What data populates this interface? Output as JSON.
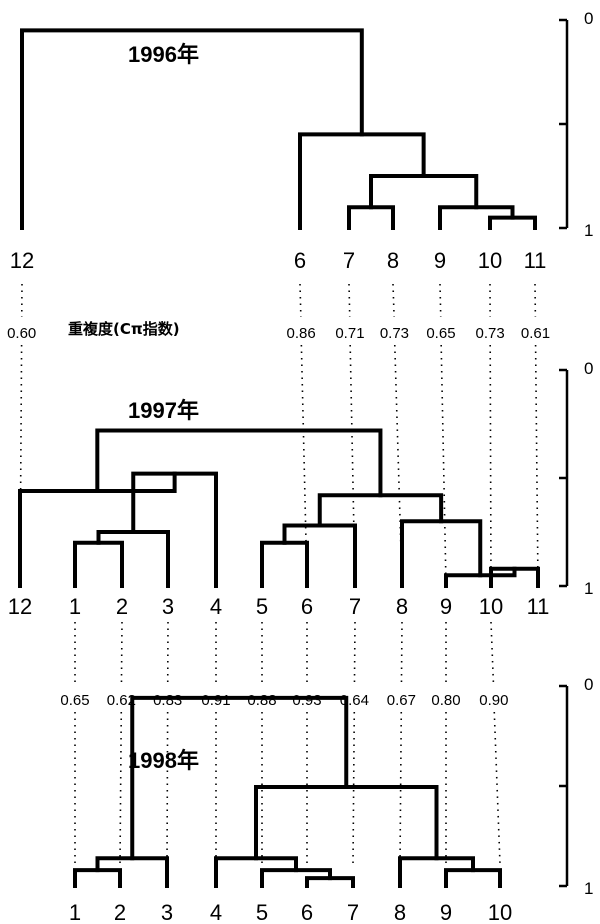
{
  "caption": "重複度(Cπ指数)",
  "panels": [
    {
      "title": "1996年",
      "scale_top": "0",
      "scale_bottom": "1",
      "leaves": [
        "12",
        "6",
        "7",
        "8",
        "9",
        "10",
        "11"
      ],
      "merges": [
        {
          "a": "10",
          "b": "11",
          "h": 0.95
        },
        {
          "a": "9",
          "b": "10|11",
          "h": 0.9
        },
        {
          "a": "7",
          "b": "8",
          "h": 0.9
        },
        {
          "a": "7|8",
          "b": "9|10|11",
          "h": 0.75
        },
        {
          "a": "6",
          "b": "7|8|9|10|11",
          "h": 0.55
        },
        {
          "a": "12",
          "b": "6|7|8|9|10|11",
          "h": 0.05
        }
      ]
    },
    {
      "title": "1997年",
      "scale_top": "0",
      "scale_bottom": "1",
      "leaves": [
        "12",
        "1",
        "2",
        "3",
        "4",
        "5",
        "6",
        "7",
        "8",
        "9",
        "10",
        "11"
      ],
      "merges": [
        {
          "a": "10",
          "b": "11",
          "h": 0.92
        },
        {
          "a": "9",
          "b": "10|11",
          "h": 0.95
        },
        {
          "a": "8",
          "b": "9|10|11",
          "h": 0.7
        },
        {
          "a": "5",
          "b": "6",
          "h": 0.8
        },
        {
          "a": "5|6",
          "b": "7",
          "h": 0.72
        },
        {
          "a": "5|6|7",
          "b": "8|9|10|11",
          "h": 0.58
        },
        {
          "a": "1",
          "b": "2",
          "h": 0.8
        },
        {
          "a": "1|2",
          "b": "3",
          "h": 0.75
        },
        {
          "a": "1|2|3",
          "b": "4",
          "h": 0.48
        },
        {
          "a": "12",
          "b": "1|2|3|4",
          "h": 0.56
        },
        {
          "a": "12|1|2|3|4",
          "b": "5|6|7|8|9|10|11",
          "h": 0.28
        }
      ]
    },
    {
      "title": "1998年",
      "scale_top": "0",
      "scale_bottom": "1",
      "leaves": [
        "1",
        "2",
        "3",
        "4",
        "5",
        "6",
        "7",
        "8",
        "9",
        "10"
      ],
      "merges": [
        {
          "a": "1",
          "b": "2",
          "h": 0.92
        },
        {
          "a": "1|2",
          "b": "3",
          "h": 0.86
        },
        {
          "a": "6",
          "b": "7",
          "h": 0.96
        },
        {
          "a": "5",
          "b": "6|7",
          "h": 0.92
        },
        {
          "a": "4",
          "b": "5|6|7",
          "h": 0.86
        },
        {
          "a": "9",
          "b": "10",
          "h": 0.92
        },
        {
          "a": "8",
          "b": "9|10",
          "h": 0.86
        },
        {
          "a": "4|5|6|7",
          "b": "8|9|10",
          "h": 0.5
        },
        {
          "a": "1|2|3",
          "b": "4|5|6|7|8|9|10",
          "h": 0.05
        }
      ]
    }
  ],
  "comparisons": [
    {
      "pairs": [
        {
          "label": "12",
          "value": "0.60"
        },
        {
          "label": "6",
          "value": "0.86"
        },
        {
          "label": "7",
          "value": "0.71"
        },
        {
          "label": "8",
          "value": "0.73"
        },
        {
          "label": "9",
          "value": "0.65"
        },
        {
          "label": "10",
          "value": "0.73"
        },
        {
          "label": "11",
          "value": "0.61"
        }
      ]
    },
    {
      "pairs": [
        {
          "label": "1",
          "value": "0.65"
        },
        {
          "label": "2",
          "value": "0.62"
        },
        {
          "label": "3",
          "value": "0.83"
        },
        {
          "label": "4",
          "value": "0.91"
        },
        {
          "label": "5",
          "value": "0.88"
        },
        {
          "label": "6",
          "value": "0.93"
        },
        {
          "label": "7",
          "value": "0.64"
        },
        {
          "label": "8",
          "value": "0.67"
        },
        {
          "label": "9",
          "value": "0.80"
        },
        {
          "label": "10",
          "value": "0.90"
        }
      ]
    }
  ]
}
